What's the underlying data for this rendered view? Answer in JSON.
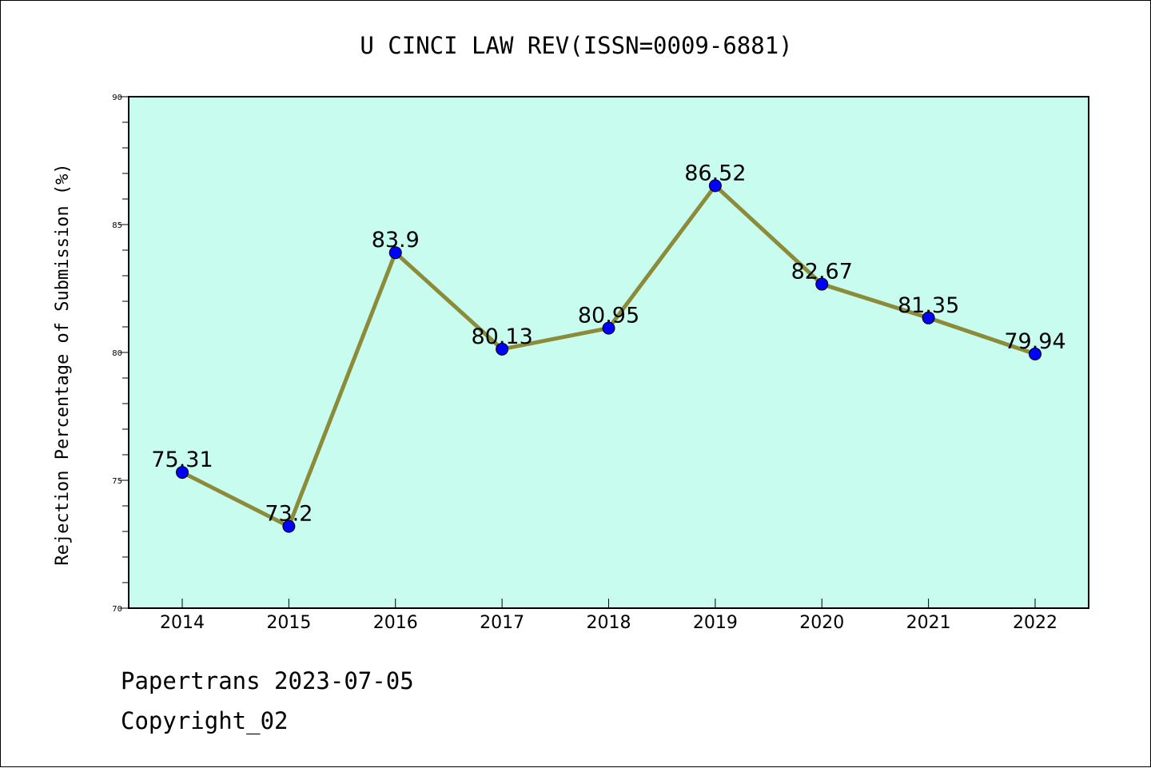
{
  "chart_data": {
    "type": "line",
    "title": "U CINCI LAW REV(ISSN=0009-6881)",
    "xlabel": "",
    "ylabel": "Rejection Percentage of Submission (%)",
    "categories": [
      "2014",
      "2015",
      "2016",
      "2017",
      "2018",
      "2019",
      "2020",
      "2021",
      "2022"
    ],
    "series": [
      {
        "values": [
          75.31,
          73.2,
          83.9,
          80.13,
          80.95,
          86.52,
          82.67,
          81.35,
          79.94
        ],
        "labels": [
          "75.31",
          "73.2",
          "83.9",
          "80.13",
          "80.95",
          "86.52",
          "82.67",
          "81.35",
          "79.94"
        ],
        "line_color": "#8b8b3a",
        "marker_color": "#0000ff"
      }
    ],
    "ylim": [
      70,
      90
    ],
    "yticks": [
      "70",
      "75",
      "80",
      "85",
      "90"
    ],
    "plot_background": "#c8fcee",
    "grid": false,
    "legend": "none"
  },
  "footer": {
    "line1": "Papertrans 2023-07-05",
    "line2": "Copyright_02"
  }
}
